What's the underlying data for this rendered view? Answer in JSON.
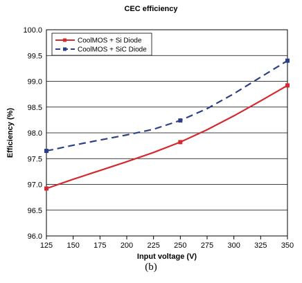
{
  "colors": {
    "si_series": "#d42a2f",
    "sic_series": "#2b3f86",
    "grid": "#000000",
    "frame": "#000000"
  },
  "caption": "(b)",
  "chart_data": {
    "type": "line",
    "title": "CEC efficiency",
    "xlabel": "Input voltage (V)",
    "ylabel": "Efficiency (%)",
    "xlim": [
      125,
      350
    ],
    "ylim": [
      96.0,
      100.0
    ],
    "x_ticks": [
      "125",
      "150",
      "175",
      "200",
      "225",
      "250",
      "275",
      "300",
      "325",
      "350"
    ],
    "y_ticks": [
      "100.0",
      "99.5",
      "99.0",
      "98.5",
      "98.0",
      "97.5",
      "97.0",
      "96.5",
      "96.0"
    ],
    "grid": true,
    "legend_position": "top-left",
    "series": [
      {
        "name": "CoolMOS + Si Diode",
        "style": "solid",
        "marker": "square",
        "x": [
          125,
          250,
          350
        ],
        "y": [
          96.92,
          97.82,
          98.92
        ],
        "curve_x": [
          125,
          150,
          175,
          200,
          225,
          250,
          275,
          300,
          325,
          350
        ],
        "curve_y": [
          96.92,
          97.1,
          97.27,
          97.44,
          97.62,
          97.82,
          98.06,
          98.33,
          98.62,
          98.92
        ]
      },
      {
        "name": "CoolMOS + SiC Diode",
        "style": "dashed",
        "marker": "square",
        "x": [
          125,
          250,
          350
        ],
        "y": [
          97.65,
          98.24,
          99.4
        ],
        "curve_x": [
          125,
          150,
          175,
          200,
          225,
          250,
          275,
          300,
          325,
          350
        ],
        "curve_y": [
          97.65,
          97.76,
          97.86,
          97.96,
          98.07,
          98.24,
          98.47,
          98.76,
          99.08,
          99.4
        ]
      }
    ]
  }
}
